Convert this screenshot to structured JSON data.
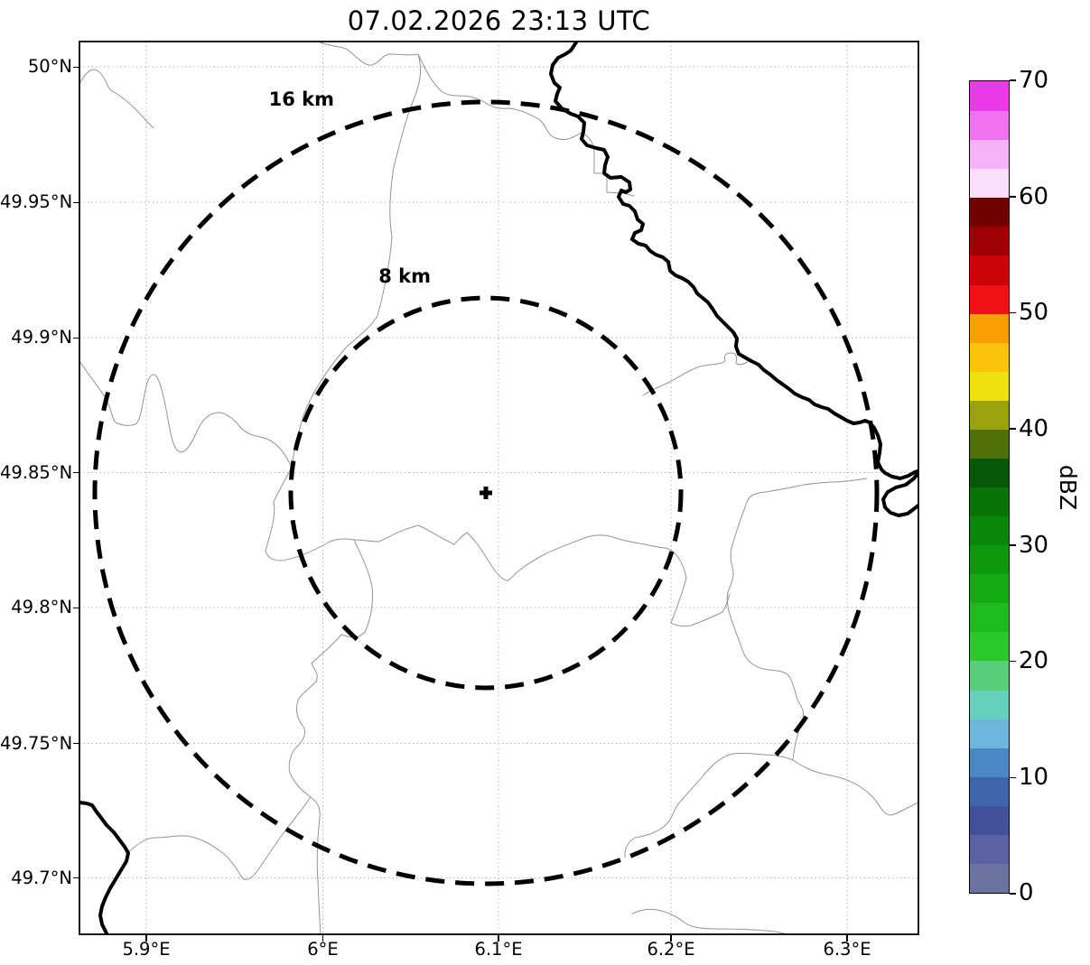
{
  "title": "07.02.2026 23:13 UTC",
  "map": {
    "range_rings": [
      {
        "label": "16 km",
        "radius_km": 16
      },
      {
        "label": "8 km",
        "radius_km": 8
      }
    ],
    "center_marker": "+",
    "lat_ticks": [
      "50°N",
      "49.95°N",
      "49.9°N",
      "49.85°N",
      "49.8°N",
      "49.75°N",
      "49.7°N"
    ],
    "lon_ticks": [
      "5.9°E",
      "6°E",
      "6.1°E",
      "6.2°E",
      "6.3°E"
    ],
    "features": {
      "national_border_river": "thick black meandering line (NE to SE, and SW corner)",
      "admin_boundaries": "thin gray meandering lines"
    }
  },
  "colorbar": {
    "label": "dBZ",
    "tick_labels": [
      "70",
      "60",
      "50",
      "40",
      "30",
      "20",
      "10",
      "0"
    ],
    "min": 0,
    "max": 70,
    "colors_bottom_to_top": [
      "#6b73a2",
      "#5963a3",
      "#41519c",
      "#3f66ad",
      "#4a87c4",
      "#6fb6dd",
      "#63d1bb",
      "#57ce78",
      "#2bc82b",
      "#1dbb1d",
      "#14aa14",
      "#0d990d",
      "#0a870a",
      "#087408",
      "#065806",
      "#4f7008",
      "#9aa30c",
      "#eee011",
      "#fcc30a",
      "#fb9d06",
      "#ee1216",
      "#cb0308",
      "#9d0003",
      "#730001",
      "#fbdffb",
      "#f7b3f7",
      "#f172f1",
      "#e93ae9"
    ]
  },
  "colors": {
    "border_river": "#000000",
    "admin_boundary": "#949494",
    "grid": "#b4b4b4",
    "range_ring": "#000000"
  }
}
